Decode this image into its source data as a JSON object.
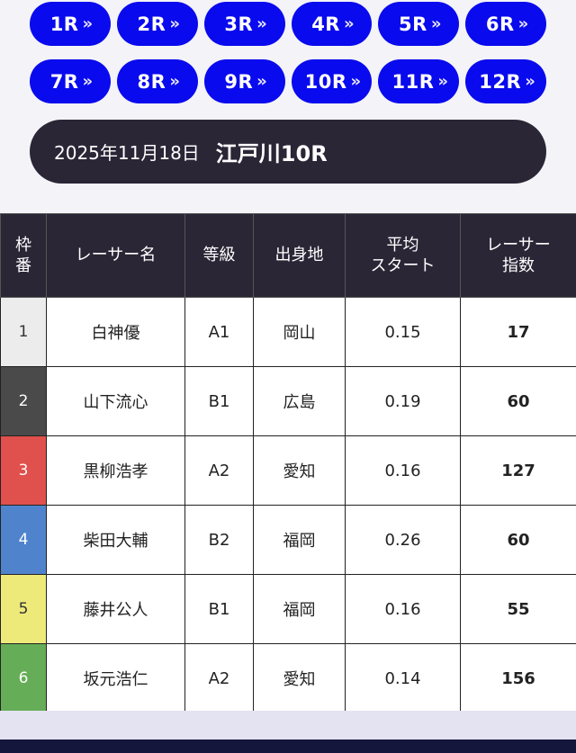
{
  "race_buttons": [
    {
      "label": "1R"
    },
    {
      "label": "2R"
    },
    {
      "label": "3R"
    },
    {
      "label": "4R"
    },
    {
      "label": "5R"
    },
    {
      "label": "6R"
    },
    {
      "label": "7R"
    },
    {
      "label": "8R"
    },
    {
      "label": "9R"
    },
    {
      "label": "10R"
    },
    {
      "label": "11R"
    },
    {
      "label": "12R"
    }
  ],
  "race_button_icon": "double-chevron-right-icon",
  "race_button_chevron": "»",
  "race_header": {
    "date": "2025年11月18日",
    "venue": "江戸川10R"
  },
  "table": {
    "headers": {
      "frame": [
        "枠",
        "番"
      ],
      "name": "レーサー名",
      "grade": "等級",
      "origin": "出身地",
      "avg_start": [
        "平均",
        "スタート"
      ],
      "index": [
        "レーサー",
        "指数"
      ]
    },
    "rows": [
      {
        "frame": "1",
        "name": "白神優",
        "grade": "A1",
        "origin": "岡山",
        "avg_start": "0.15",
        "index": "17"
      },
      {
        "frame": "2",
        "name": "山下流心",
        "grade": "B1",
        "origin": "広島",
        "avg_start": "0.19",
        "index": "60"
      },
      {
        "frame": "3",
        "name": "黒柳浩孝",
        "grade": "A2",
        "origin": "愛知",
        "avg_start": "0.16",
        "index": "127"
      },
      {
        "frame": "4",
        "name": "柴田大輔",
        "grade": "B2",
        "origin": "福岡",
        "avg_start": "0.26",
        "index": "60"
      },
      {
        "frame": "5",
        "name": "藤井公人",
        "grade": "B1",
        "origin": "福岡",
        "avg_start": "0.16",
        "index": "55"
      },
      {
        "frame": "6",
        "name": "坂元浩仁",
        "grade": "A2",
        "origin": "愛知",
        "avg_start": "0.14",
        "index": "156"
      }
    ],
    "frame_colors": [
      {
        "bg": "#ececec",
        "fg": "#333333"
      },
      {
        "bg": "#4a4a4a",
        "fg": "#ffffff"
      },
      {
        "bg": "#e0504c",
        "fg": "#ffffff"
      },
      {
        "bg": "#4f84cc",
        "fg": "#ffffff"
      },
      {
        "bg": "#eeea7a",
        "fg": "#333333"
      },
      {
        "bg": "#66ad57",
        "fg": "#ffffff"
      }
    ]
  },
  "colors": {
    "accent": "#0a0aee",
    "header_dark": "#2a2636",
    "footer": "#15163c"
  }
}
